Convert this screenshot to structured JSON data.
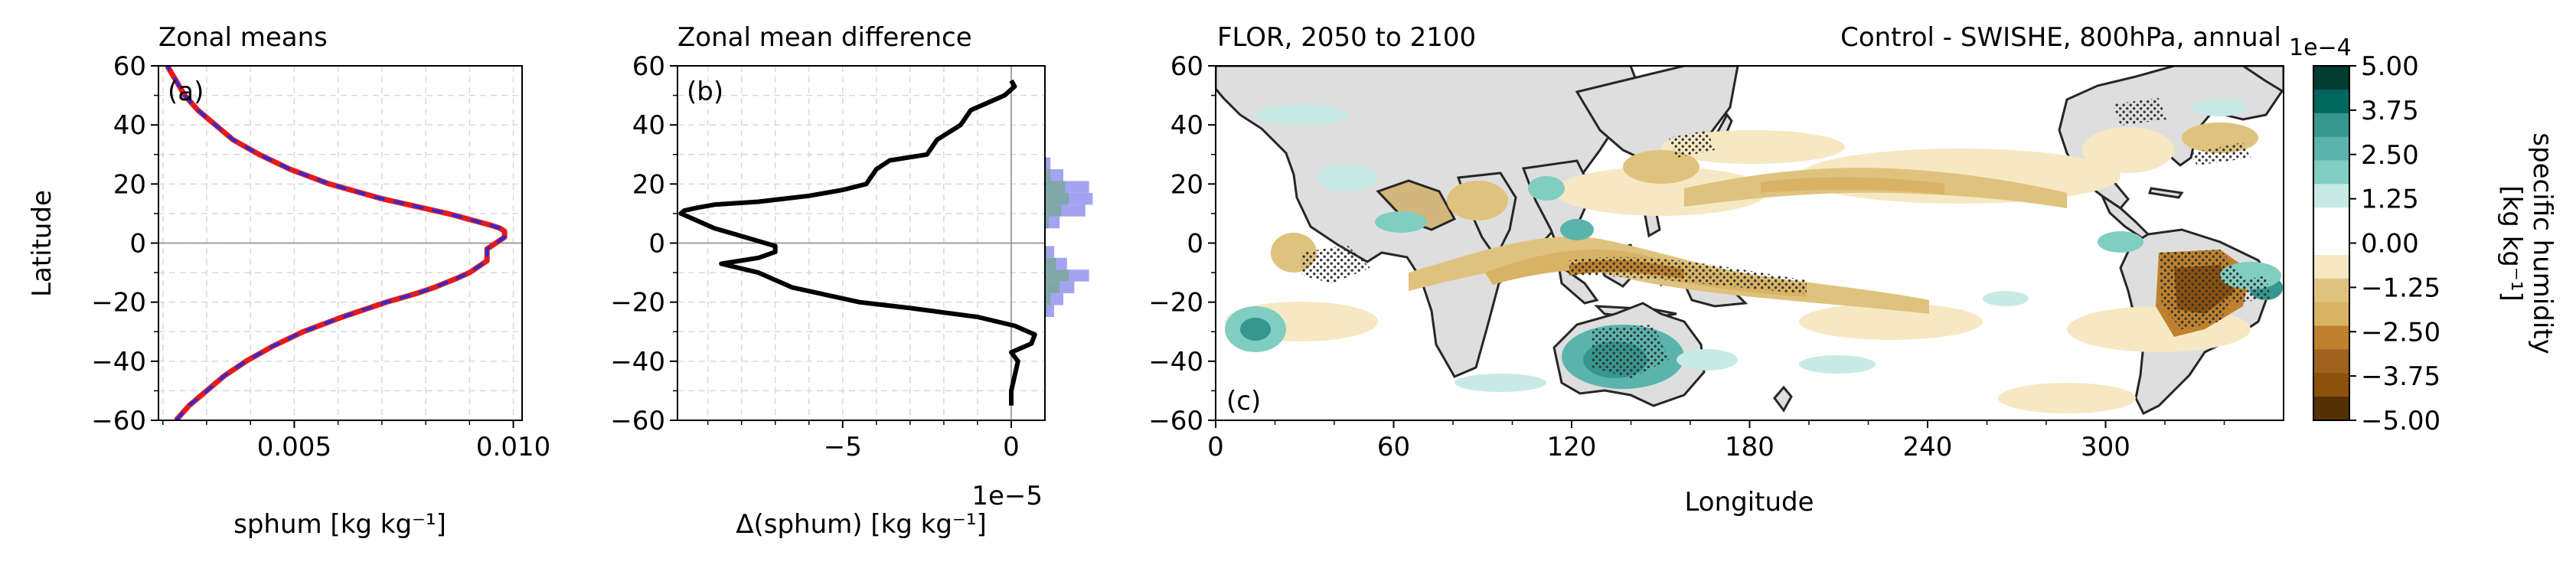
{
  "colors": {
    "red": "#e41a1c",
    "blue": "#2b2bd6",
    "black": "#000000",
    "land": "#dedede",
    "hatch": "#333333",
    "hist_fill": "#a3a3f2",
    "hist_overlap": "#7fa7a8"
  },
  "chart_data": [
    {
      "panel": "(a)",
      "type": "line",
      "title": "Zonal means",
      "xlabel": "sphum [kg kg⁻¹]",
      "ylabel": "Latitude",
      "xlim": [
        0.0019,
        0.0102
      ],
      "ylim": [
        -60,
        60
      ],
      "xticks": [
        0.005,
        0.01
      ],
      "xtick_labels": [
        "0.005",
        "0.010"
      ],
      "yticks": [
        -60,
        -40,
        -20,
        0,
        20,
        40,
        60
      ],
      "ytick_labels": [
        "−60",
        "−40",
        "−20",
        "0",
        "20",
        "40",
        "60"
      ],
      "grid": true,
      "hline_at": 0,
      "series": [
        {
          "style": "solid-red",
          "lat": [
            -60,
            -55,
            -50,
            -45,
            -40,
            -35,
            -30,
            -25,
            -20,
            -17,
            -15,
            -12,
            -10,
            -8,
            -6,
            -4,
            -2,
            0,
            2,
            4,
            5,
            6,
            8,
            10,
            12,
            15,
            20,
            25,
            30,
            35,
            40,
            45,
            50,
            55,
            60
          ],
          "values": [
            0.0023,
            0.0026,
            0.003,
            0.0034,
            0.0039,
            0.0045,
            0.0052,
            0.0061,
            0.0071,
            0.0078,
            0.0082,
            0.0087,
            0.009,
            0.0092,
            0.0094,
            0.0094,
            0.0094,
            0.0096,
            0.0098,
            0.0098,
            0.0097,
            0.0095,
            0.009,
            0.0085,
            0.0079,
            0.007,
            0.0058,
            0.0049,
            0.0042,
            0.0036,
            0.0032,
            0.0028,
            0.0025,
            0.0023,
            0.0021
          ]
        },
        {
          "style": "dashed-blue",
          "lat": [
            -60,
            -55,
            -50,
            -45,
            -40,
            -35,
            -30,
            -25,
            -20,
            -17,
            -15,
            -12,
            -10,
            -8,
            -6,
            -4,
            -2,
            0,
            2,
            4,
            5,
            6,
            8,
            10,
            12,
            15,
            20,
            25,
            30,
            35,
            40,
            45,
            50,
            55,
            60
          ],
          "values": [
            0.0023,
            0.0026,
            0.003,
            0.0034,
            0.0039,
            0.0045,
            0.0052,
            0.0061,
            0.0071,
            0.0078,
            0.0082,
            0.0087,
            0.009,
            0.0092,
            0.0094,
            0.0094,
            0.0094,
            0.0096,
            0.0098,
            0.0098,
            0.0097,
            0.0095,
            0.009,
            0.0085,
            0.0079,
            0.007,
            0.0058,
            0.0049,
            0.0042,
            0.0036,
            0.0032,
            0.0028,
            0.0025,
            0.0023,
            0.0021
          ]
        }
      ]
    },
    {
      "panel": "(b)",
      "type": "line",
      "title": "Zonal mean difference",
      "xlabel": "Δ(sphum) [kg kg⁻¹]",
      "offset_text": "1e−5",
      "ylim": [
        -60,
        60
      ],
      "xlim": [
        -9.9,
        1.0
      ],
      "xticks": [
        -5,
        0
      ],
      "xtick_labels": [
        "−5",
        "0"
      ],
      "yticks": [
        -60,
        -40,
        -20,
        0,
        20,
        40,
        60
      ],
      "ytick_labels": [
        "−60",
        "−40",
        "−20",
        "0",
        "20",
        "40",
        "60"
      ],
      "grid": true,
      "hline_at": 0,
      "vline_at": 0,
      "series": [
        {
          "style": "solid-black",
          "lat": [
            -55,
            -50,
            -45,
            -40,
            -37,
            -34,
            -31,
            -28,
            -25,
            -22,
            -20,
            -15,
            -10,
            -7,
            -5,
            -3,
            -1,
            1,
            3,
            5,
            7,
            9,
            10,
            11,
            12,
            13,
            14,
            16,
            18,
            20,
            25,
            28,
            30,
            35,
            40,
            45,
            50,
            53,
            55
          ],
          "values": [
            0.0,
            0.0,
            0.1,
            0.2,
            0.0,
            0.6,
            0.7,
            0.1,
            -1.0,
            -3.0,
            -4.5,
            -6.5,
            -7.5,
            -8.6,
            -7.5,
            -7.0,
            -7.0,
            -7.6,
            -8.2,
            -8.8,
            -9.2,
            -9.6,
            -9.8,
            -9.7,
            -9.3,
            -8.8,
            -7.5,
            -6.0,
            -5.0,
            -4.3,
            -4.0,
            -3.6,
            -2.5,
            -2.2,
            -1.5,
            -1.2,
            -0.2,
            0.1,
            0.0
          ]
        }
      ],
      "histogram_vertical": {
        "bins_lat": [
          [
            -25,
            -21
          ],
          [
            -21,
            -17
          ],
          [
            -17,
            -13
          ],
          [
            -13,
            -9
          ],
          [
            -9,
            -5
          ],
          [
            -5,
            -1
          ],
          [
            5,
            9
          ],
          [
            9,
            13
          ],
          [
            13,
            17
          ],
          [
            17,
            21
          ],
          [
            21,
            25
          ],
          [
            25,
            29
          ]
        ],
        "blue_counts": [
          0.5,
          1.0,
          1.6,
          2.4,
          1.2,
          0.5,
          0.8,
          2.2,
          2.6,
          2.4,
          1.0,
          0.3
        ],
        "green_counts": [
          0.1,
          0.3,
          0.8,
          1.3,
          0.6,
          0.1,
          0.2,
          0.9,
          1.3,
          1.1,
          0.3,
          0.1
        ]
      }
    },
    {
      "panel": "(c)",
      "type": "heatmap",
      "title_left": "FLOR, 2050 to 2100",
      "title_right": "Control - SWISHE, 800hPa, annual",
      "xlabel": "Longitude",
      "ylim": [
        -60,
        60
      ],
      "xlim": [
        0,
        360
      ],
      "xticks": [
        0,
        60,
        120,
        180,
        240,
        300
      ],
      "xtick_labels": [
        "0",
        "60",
        "120",
        "180",
        "240",
        "300"
      ],
      "yticks": [
        -60,
        -40,
        -20,
        0,
        20,
        40,
        60
      ],
      "ytick_labels": [
        "−60",
        "−40",
        "−20",
        "0",
        "20",
        "40",
        "60"
      ],
      "colorbar": {
        "label_line1": "specific humidity",
        "label_line2": "[kg kg⁻¹]",
        "offset_text": "1e−4",
        "tick_labels": [
          "5.00",
          "3.75",
          "2.50",
          "1.25",
          "0.00",
          "−1.25",
          "−2.50",
          "−3.75",
          "−5.00"
        ],
        "levels_top_to_bottom": [
          "#003c30",
          "#01665e",
          "#35978f",
          "#5ab4ac",
          "#80cdc1",
          "#c7eae5",
          "#ffffff",
          "#ffffff",
          "#f6e8c3",
          "#dfc27d",
          "#d8b365",
          "#bf812d",
          "#a0621f",
          "#8c510a",
          "#543005"
        ],
        "range": [
          -5.0,
          5.0
        ]
      }
    }
  ]
}
